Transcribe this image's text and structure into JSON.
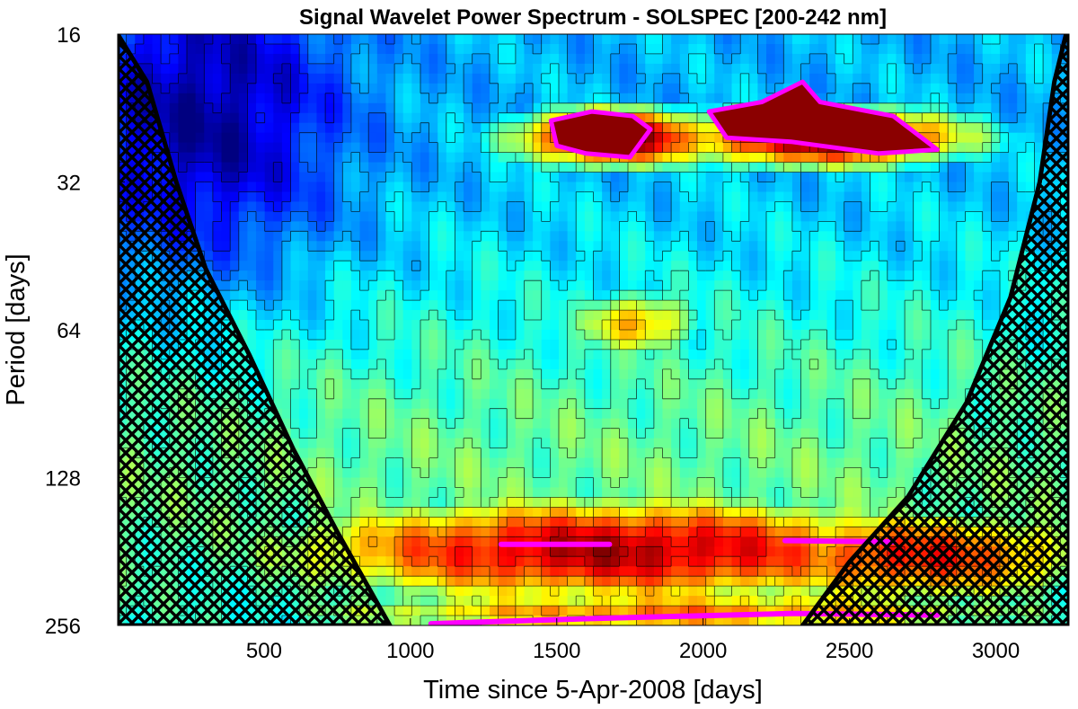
{
  "chart_data": {
    "type": "heatmap",
    "title": "Signal Wavelet Power Spectrum - SOLSPEC [200-242 nm]",
    "xlabel": "Time since 5-Apr-2008 [days]",
    "ylabel": "Period [days]",
    "xlim": [
      0,
      3250
    ],
    "ylim": [
      16,
      256
    ],
    "yscale": "log2",
    "y_reversed": true,
    "x_ticks": [
      500,
      1000,
      1500,
      2000,
      2500,
      3000
    ],
    "y_ticks": [
      16,
      32,
      64,
      128,
      256
    ],
    "colormap": "jet",
    "cone_of_influence": {
      "left": [
        [
          0,
          16
        ],
        [
          100,
          20
        ],
        [
          200,
          32
        ],
        [
          300,
          48
        ],
        [
          450,
          72
        ],
        [
          600,
          112
        ],
        [
          750,
          165
        ],
        [
          930,
          256
        ]
      ],
      "right": [
        [
          2340,
          256
        ],
        [
          2500,
          190
        ],
        [
          2700,
          140
        ],
        [
          2900,
          90
        ],
        [
          3050,
          55
        ],
        [
          3150,
          32
        ],
        [
          3200,
          20
        ],
        [
          3240,
          16
        ]
      ]
    },
    "power_features": [
      {
        "name": "annual-band",
        "x_center": 1700,
        "period": 180,
        "x_width": 1500,
        "period_width_log2": 0.45,
        "level": 0.95
      },
      {
        "name": "annual-band-east",
        "x_center": 2700,
        "period": 185,
        "x_width": 900,
        "period_width_log2": 0.4,
        "level": 0.85
      },
      {
        "name": "rotation-band-west",
        "x_center": 1700,
        "period": 26,
        "x_width": 450,
        "period_width_log2": 0.25,
        "level": 1.0
      },
      {
        "name": "rotation-band-east",
        "x_center": 2400,
        "period": 26,
        "x_width": 650,
        "period_width_log2": 0.25,
        "level": 1.0
      },
      {
        "name": "mid-blob",
        "x_center": 1780,
        "period": 62,
        "x_width": 300,
        "period_width_log2": 0.3,
        "level": 0.7
      },
      {
        "name": "long-period-band",
        "x_center": 1900,
        "period": 240,
        "x_width": 1800,
        "period_width_log2": 0.2,
        "level": 0.75
      }
    ],
    "significance_regions": [
      {
        "name": "sig-rotation-west",
        "points": [
          [
            1480,
            24
          ],
          [
            1620,
            23
          ],
          [
            1760,
            23.5
          ],
          [
            1820,
            25
          ],
          [
            1750,
            28.5
          ],
          [
            1600,
            28
          ],
          [
            1500,
            27
          ]
        ]
      },
      {
        "name": "sig-rotation-east",
        "points": [
          [
            2020,
            23
          ],
          [
            2200,
            22
          ],
          [
            2340,
            20
          ],
          [
            2400,
            22
          ],
          [
            2650,
            23.5
          ],
          [
            2800,
            27.5
          ],
          [
            2600,
            28
          ],
          [
            2300,
            26.5
          ],
          [
            2080,
            26
          ]
        ]
      }
    ],
    "significance_lines": [
      {
        "name": "sig-annual-west",
        "points": [
          [
            1310,
            175
          ],
          [
            1680,
            175
          ]
        ]
      },
      {
        "name": "sig-annual-east",
        "points": [
          [
            2280,
            172
          ],
          [
            2650,
            173
          ]
        ]
      },
      {
        "name": "sig-long-period",
        "points": [
          [
            1070,
            254
          ],
          [
            1600,
            248
          ],
          [
            2300,
            242
          ],
          [
            2800,
            244
          ]
        ]
      }
    ]
  }
}
